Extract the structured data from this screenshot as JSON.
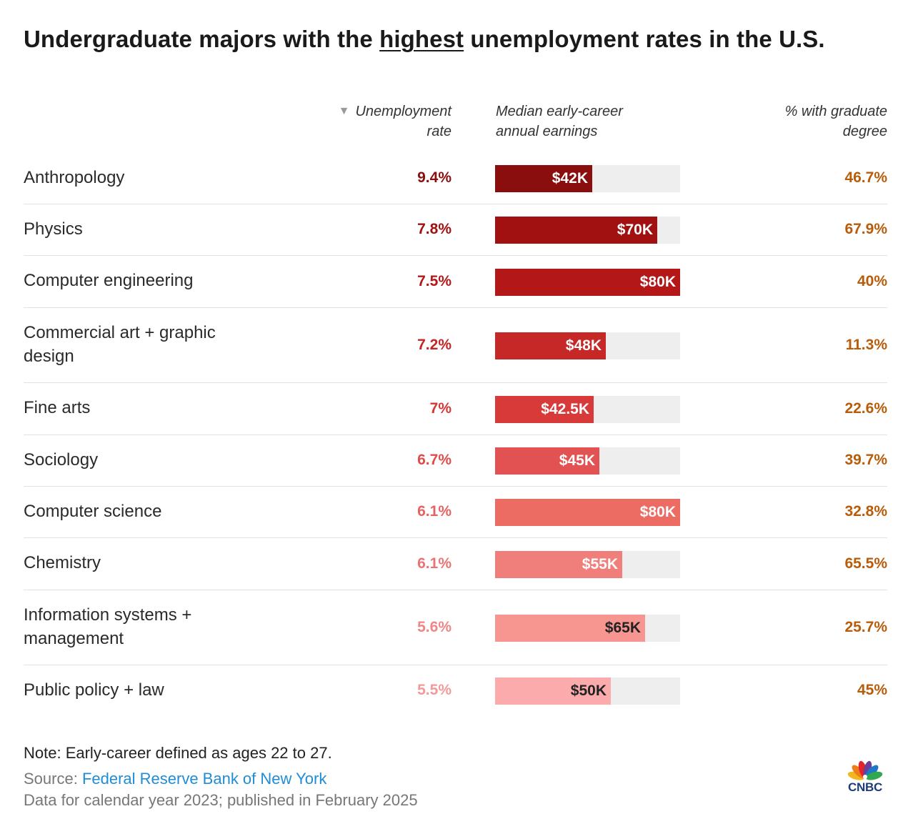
{
  "title": {
    "before": "Undergraduate majors with the ",
    "highlight": "highest",
    "after": " unemployment rates in the U.S."
  },
  "headers": {
    "sort_icon": "▼",
    "unemployment_line1": "Unemployment",
    "unemployment_line2": "rate",
    "earnings_line1": "Median early-career",
    "earnings_line2": "annual earnings",
    "grad_line1": "% with graduate",
    "grad_line2": "degree"
  },
  "chart_data": {
    "type": "table",
    "columns": [
      "Unemployment rate",
      "Median early-career annual earnings",
      "% with graduate degree"
    ],
    "earnings_max": 80,
    "rows": [
      {
        "major": "Anthropology",
        "rate": "9.4%",
        "earnings": 42,
        "earnings_label": "$42K",
        "grad": "46.7%",
        "rate_color": "#8b0e0e",
        "bar_color": "#8b0e0e",
        "label_dark": false
      },
      {
        "major": "Physics",
        "rate": "7.8%",
        "earnings": 70,
        "earnings_label": "$70K",
        "grad": "67.9%",
        "rate_color": "#a11111",
        "bar_color": "#a11111",
        "label_dark": false
      },
      {
        "major": "Computer engineering",
        "rate": "7.5%",
        "earnings": 80,
        "earnings_label": "$80K",
        "grad": "40%",
        "rate_color": "#b41717",
        "bar_color": "#b41717",
        "label_dark": false
      },
      {
        "major": "Commercial art + graphic design",
        "rate": "7.2%",
        "earnings": 48,
        "earnings_label": "$48K",
        "grad": "11.3%",
        "rate_color": "#c62424",
        "bar_color": "#c62727",
        "label_dark": false
      },
      {
        "major": "Fine arts",
        "rate": "7%",
        "earnings": 42.5,
        "earnings_label": "$42.5K",
        "grad": "22.6%",
        "rate_color": "#d53636",
        "bar_color": "#d83a3a",
        "label_dark": false
      },
      {
        "major": "Sociology",
        "rate": "6.7%",
        "earnings": 45,
        "earnings_label": "$45K",
        "grad": "39.7%",
        "rate_color": "#e04b4b",
        "bar_color": "#e35252",
        "label_dark": false
      },
      {
        "major": "Computer science",
        "rate": "6.1%",
        "earnings": 80,
        "earnings_label": "$80K",
        "grad": "32.8%",
        "rate_color": "#e76262",
        "bar_color": "#ec6b63",
        "label_dark": false
      },
      {
        "major": "Chemistry",
        "rate": "6.1%",
        "earnings": 55,
        "earnings_label": "$55K",
        "grad": "65.5%",
        "rate_color": "#ec7373",
        "bar_color": "#f07f7b",
        "label_dark": false
      },
      {
        "major": "Information systems + management",
        "rate": "5.6%",
        "earnings": 65,
        "earnings_label": "$65K",
        "grad": "25.7%",
        "rate_color": "#ef8585",
        "bar_color": "#f79591",
        "label_dark": true
      },
      {
        "major": "Public policy + law",
        "rate": "5.5%",
        "earnings": 50,
        "earnings_label": "$50K",
        "grad": "45%",
        "rate_color": "#f29a9a",
        "bar_color": "#fbabab",
        "label_dark": true
      }
    ]
  },
  "footer": {
    "note": "Note: Early-career defined as ages 22 to 27.",
    "source_prefix": "Source: ",
    "source_link": "Federal Reserve Bank of New York",
    "published": "Data for calendar year 2023; published in February 2025",
    "logo_text": "CNBC"
  },
  "colors": {
    "grad_text": "#b85c0a",
    "bar_track": "#eeeeee",
    "link": "#1f8dd6",
    "logo_blue": "#1d3c78"
  }
}
